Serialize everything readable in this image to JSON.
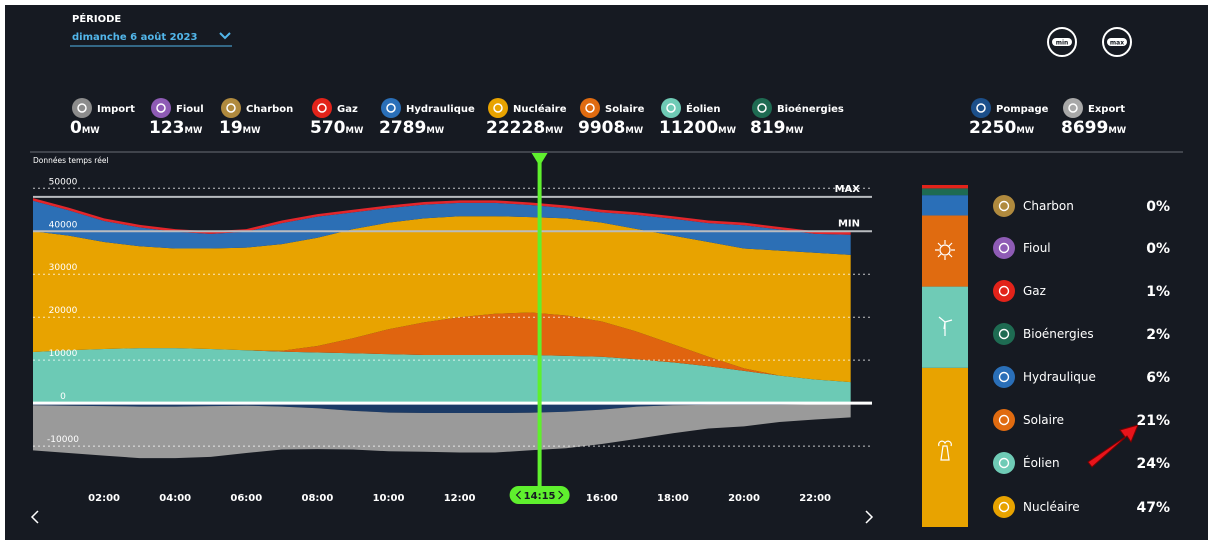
{
  "header": {
    "period_label": "PÉRIODE",
    "period": "dimanche 6 août 2023",
    "buttons": [
      "min",
      "max"
    ]
  },
  "unit": "MW",
  "sources": [
    {
      "name": "Import",
      "value": 0,
      "color": "#8c8c8c"
    },
    {
      "name": "Fioul",
      "value": 123,
      "color": "#8e5bb5"
    },
    {
      "name": "Charbon",
      "value": 19,
      "color": "#b08a3e"
    },
    {
      "name": "Gaz",
      "value": 570,
      "color": "#e2231a"
    },
    {
      "name": "Hydraulique",
      "value": 2789,
      "color": "#2a6fb8"
    },
    {
      "name": "Nucléaire",
      "value": 22228,
      "color": "#e8a300"
    },
    {
      "name": "Solaire",
      "value": 9908,
      "color": "#e06b10"
    },
    {
      "name": "Éolien",
      "value": 11200,
      "color": "#6fcbb6"
    },
    {
      "name": "Bioénergies",
      "value": 819,
      "color": "#1e6b52"
    },
    {
      "name": "Pompage",
      "value": 2250,
      "color": "#1c4f8a"
    },
    {
      "name": "Export",
      "value": 8699,
      "color": "#a8a8a8"
    }
  ],
  "chart_data": {
    "type": "area",
    "subtitle": "Données temps réel",
    "x": [
      0,
      1,
      2,
      3,
      4,
      5,
      6,
      7,
      8,
      9,
      10,
      11,
      12,
      13,
      14,
      15,
      16,
      17,
      18,
      19,
      20,
      21,
      22,
      23
    ],
    "xlim": [
      0,
      23.6
    ],
    "xticks": [
      {
        "value": 2,
        "label": "02:00"
      },
      {
        "value": 4,
        "label": "04:00"
      },
      {
        "value": 6,
        "label": "06:00"
      },
      {
        "value": 8,
        "label": "08:00"
      },
      {
        "value": 10,
        "label": "10:00"
      },
      {
        "value": 12,
        "label": "12:00"
      },
      {
        "value": 16,
        "label": "16:00"
      },
      {
        "value": 18,
        "label": "18:00"
      },
      {
        "value": 20,
        "label": "20:00"
      },
      {
        "value": 22,
        "label": "22:00"
      }
    ],
    "ylim": [
      -13000,
      51000
    ],
    "yticks": [
      -10000,
      0,
      10000,
      20000,
      30000,
      40000,
      50000
    ],
    "grid": true,
    "series": [
      {
        "color": "#6ccab5",
        "values": [
          11900,
          12300,
          12600,
          12800,
          12800,
          12600,
          12300,
          12000,
          11800,
          11600,
          11400,
          11200,
          11200,
          11200,
          11200,
          11000,
          10800,
          10200,
          9500,
          8600,
          7500,
          6400,
          5500,
          4900
        ]
      },
      {
        "color": "#e0640f",
        "values": [
          0,
          0,
          0,
          0,
          0,
          0,
          0,
          200,
          1500,
          3500,
          5800,
          7600,
          8800,
          9600,
          9900,
          9400,
          8200,
          6400,
          4200,
          2200,
          600,
          0,
          0,
          0
        ]
      },
      {
        "color": "#e8a300",
        "values": [
          28100,
          26700,
          24900,
          23700,
          23200,
          23400,
          23900,
          24800,
          25200,
          25400,
          24800,
          24200,
          23500,
          22700,
          22200,
          22600,
          23000,
          23900,
          25300,
          26700,
          27900,
          29100,
          29500,
          29600
        ]
      },
      {
        "color": "#2c6fb5",
        "values": [
          7100,
          5900,
          4900,
          4400,
          3900,
          3400,
          3700,
          4900,
          4900,
          3900,
          3400,
          3200,
          3100,
          3100,
          2800,
          2400,
          2400,
          3300,
          3900,
          4400,
          5400,
          4900,
          4400,
          4700
        ]
      },
      {
        "color": "#e3262b",
        "values": [
          600,
          600,
          600,
          600,
          600,
          600,
          600,
          600,
          600,
          600,
          600,
          600,
          600,
          600,
          600,
          600,
          600,
          600,
          600,
          600,
          600,
          600,
          600,
          600
        ]
      },
      {
        "color": "#1b3a66",
        "values": [
          -500,
          -600,
          -700,
          -800,
          -800,
          -700,
          -600,
          -800,
          -1200,
          -1800,
          -2200,
          -2300,
          -2300,
          -2300,
          -2250,
          -2000,
          -1500,
          -800,
          -500,
          -400,
          -400,
          -400,
          -300,
          -300
        ]
      },
      {
        "color": "#9a9a9a",
        "values": [
          -10500,
          -11000,
          -11500,
          -12000,
          -12000,
          -11800,
          -11000,
          -10000,
          -9500,
          -9000,
          -9000,
          -9000,
          -9200,
          -9200,
          -8700,
          -8500,
          -8000,
          -7500,
          -6500,
          -5500,
          -5000,
          -4000,
          -3500,
          -3000
        ]
      }
    ],
    "max_line": {
      "value": 48000,
      "label": "MAX"
    },
    "min_line": {
      "value": 40000,
      "label": "MIN"
    },
    "cursor": {
      "value": 14.25,
      "label": "14:15"
    }
  },
  "breakdown": {
    "type": "stacked-bar",
    "items": [
      {
        "name": "Charbon",
        "value": 0,
        "value_label": "0%",
        "color": "#b08a3e"
      },
      {
        "name": "Fioul",
        "value": 0,
        "value_label": "0%",
        "color": "#8e5bb5"
      },
      {
        "name": "Gaz",
        "value": 1,
        "value_label": "1%",
        "color": "#e2231a"
      },
      {
        "name": "Bioénergies",
        "value": 2,
        "value_label": "2%",
        "color": "#1e6b52"
      },
      {
        "name": "Hydraulique",
        "value": 6,
        "value_label": "6%",
        "color": "#2a6fb8"
      },
      {
        "name": "Solaire",
        "value": 21,
        "value_label": "21%",
        "color": "#e06b10"
      },
      {
        "name": "Éolien",
        "value": 24,
        "value_label": "24%",
        "color": "#6fcbb6"
      },
      {
        "name": "Nucléaire",
        "value": 47,
        "value_label": "47%",
        "color": "#e8a300"
      }
    ]
  }
}
